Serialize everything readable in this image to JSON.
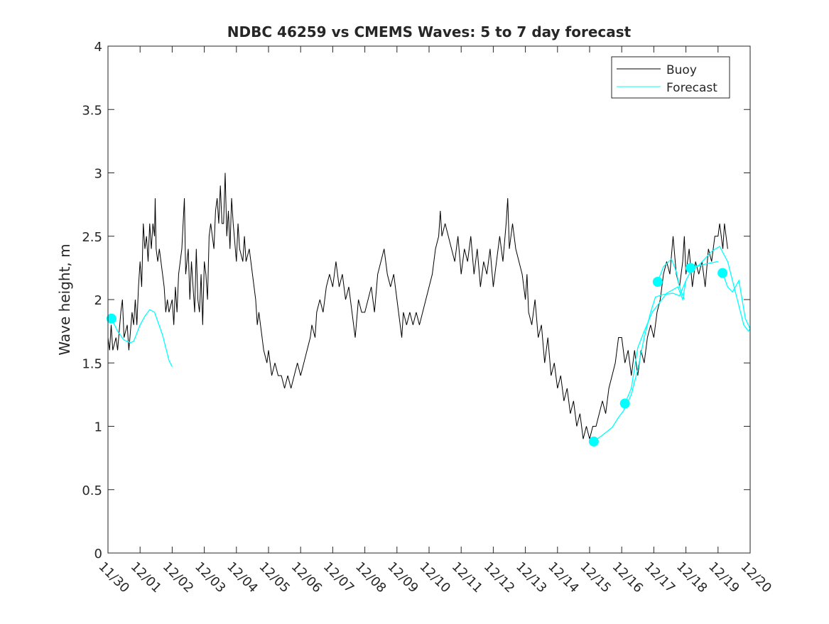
{
  "chart_data": {
    "type": "line",
    "title": "NDBC 46259 vs CMEMS Waves: 5 to 7 day forecast",
    "xlabel": "",
    "ylabel": "Wave height, m",
    "xlim": [
      0,
      20
    ],
    "ylim": [
      0,
      4
    ],
    "x_units": "days since 11/30",
    "xticks": [
      0,
      1,
      2,
      3,
      4,
      5,
      6,
      7,
      8,
      9,
      10,
      11,
      12,
      13,
      14,
      15,
      16,
      17,
      18,
      19,
      20
    ],
    "xtick_labels": [
      "11/30",
      "12/01",
      "12/02",
      "12/03",
      "12/04",
      "12/05",
      "12/06",
      "12/07",
      "12/08",
      "12/09",
      "12/10",
      "12/11",
      "12/12",
      "12/13",
      "12/14",
      "12/15",
      "12/16",
      "12/17",
      "12/18",
      "12/19",
      "12/20"
    ],
    "yticks": [
      0,
      0.5,
      1,
      1.5,
      2,
      2.5,
      3,
      3.5,
      4
    ],
    "ytick_labels": [
      "0",
      "0.5",
      "1",
      "1.5",
      "2",
      "2.5",
      "3",
      "3.5",
      "4"
    ],
    "grid": false,
    "legend": {
      "placement": "top-right",
      "entries": [
        "Buoy",
        "Forecast"
      ]
    },
    "colors": {
      "buoy": "#000000",
      "forecast": "#00FFFF"
    },
    "series": [
      {
        "name": "Buoy",
        "points": [
          [
            0,
            1.7
          ],
          [
            0.05,
            1.6
          ],
          [
            0.1,
            1.8
          ],
          [
            0.15,
            1.6
          ],
          [
            0.25,
            1.7
          ],
          [
            0.3,
            1.6
          ],
          [
            0.4,
            1.9
          ],
          [
            0.45,
            2.0
          ],
          [
            0.5,
            1.7
          ],
          [
            0.6,
            1.8
          ],
          [
            0.65,
            1.6
          ],
          [
            0.75,
            1.9
          ],
          [
            0.8,
            1.8
          ],
          [
            0.85,
            2.0
          ],
          [
            0.9,
            1.8
          ],
          [
            0.95,
            2.1
          ],
          [
            1.0,
            2.3
          ],
          [
            1.05,
            2.1
          ],
          [
            1.1,
            2.6
          ],
          [
            1.15,
            2.4
          ],
          [
            1.2,
            2.5
          ],
          [
            1.25,
            2.3
          ],
          [
            1.3,
            2.6
          ],
          [
            1.35,
            2.4
          ],
          [
            1.4,
            2.6
          ],
          [
            1.45,
            2.5
          ],
          [
            1.47,
            2.8
          ],
          [
            1.5,
            2.4
          ],
          [
            1.55,
            2.3
          ],
          [
            1.6,
            2.4
          ],
          [
            1.7,
            2.2
          ],
          [
            1.75,
            2.1
          ],
          [
            1.8,
            1.9
          ],
          [
            1.85,
            2.0
          ],
          [
            1.9,
            1.9
          ],
          [
            2.0,
            2.0
          ],
          [
            2.05,
            1.8
          ],
          [
            2.1,
            2.1
          ],
          [
            2.15,
            1.9
          ],
          [
            2.2,
            2.2
          ],
          [
            2.3,
            2.4
          ],
          [
            2.38,
            2.8
          ],
          [
            2.42,
            2.2
          ],
          [
            2.5,
            2.4
          ],
          [
            2.55,
            2.0
          ],
          [
            2.6,
            2.3
          ],
          [
            2.7,
            1.9
          ],
          [
            2.75,
            2.4
          ],
          [
            2.8,
            2.0
          ],
          [
            2.85,
            1.9
          ],
          [
            2.9,
            2.2
          ],
          [
            2.95,
            1.8
          ],
          [
            3.0,
            2.3
          ],
          [
            3.05,
            2.2
          ],
          [
            3.1,
            2.0
          ],
          [
            3.15,
            2.5
          ],
          [
            3.2,
            2.6
          ],
          [
            3.3,
            2.4
          ],
          [
            3.35,
            2.7
          ],
          [
            3.4,
            2.8
          ],
          [
            3.45,
            2.6
          ],
          [
            3.5,
            2.9
          ],
          [
            3.55,
            2.6
          ],
          [
            3.6,
            2.6
          ],
          [
            3.65,
            3.0
          ],
          [
            3.7,
            2.5
          ],
          [
            3.75,
            2.7
          ],
          [
            3.8,
            2.4
          ],
          [
            3.85,
            2.8
          ],
          [
            3.9,
            2.6
          ],
          [
            4.0,
            2.3
          ],
          [
            4.05,
            2.6
          ],
          [
            4.1,
            2.4
          ],
          [
            4.2,
            2.3
          ],
          [
            4.25,
            2.5
          ],
          [
            4.3,
            2.3
          ],
          [
            4.4,
            2.4
          ],
          [
            4.5,
            2.2
          ],
          [
            4.6,
            2.0
          ],
          [
            4.65,
            1.8
          ],
          [
            4.7,
            1.9
          ],
          [
            4.8,
            1.7
          ],
          [
            4.85,
            1.6
          ],
          [
            4.95,
            1.5
          ],
          [
            5.0,
            1.6
          ],
          [
            5.1,
            1.4
          ],
          [
            5.2,
            1.5
          ],
          [
            5.3,
            1.4
          ],
          [
            5.4,
            1.4
          ],
          [
            5.5,
            1.3
          ],
          [
            5.6,
            1.4
          ],
          [
            5.7,
            1.3
          ],
          [
            5.8,
            1.4
          ],
          [
            5.9,
            1.5
          ],
          [
            6.0,
            1.4
          ],
          [
            6.1,
            1.5
          ],
          [
            6.2,
            1.6
          ],
          [
            6.3,
            1.7
          ],
          [
            6.35,
            1.8
          ],
          [
            6.45,
            1.7
          ],
          [
            6.5,
            1.9
          ],
          [
            6.6,
            2.0
          ],
          [
            6.7,
            1.9
          ],
          [
            6.8,
            2.1
          ],
          [
            6.9,
            2.2
          ],
          [
            7.0,
            2.1
          ],
          [
            7.1,
            2.3
          ],
          [
            7.2,
            2.1
          ],
          [
            7.3,
            2.2
          ],
          [
            7.4,
            2.0
          ],
          [
            7.5,
            2.1
          ],
          [
            7.6,
            1.9
          ],
          [
            7.7,
            1.7
          ],
          [
            7.8,
            2.0
          ],
          [
            7.9,
            1.9
          ],
          [
            8.0,
            1.9
          ],
          [
            8.1,
            2.0
          ],
          [
            8.2,
            2.1
          ],
          [
            8.3,
            1.9
          ],
          [
            8.4,
            2.2
          ],
          [
            8.5,
            2.3
          ],
          [
            8.6,
            2.4
          ],
          [
            8.7,
            2.2
          ],
          [
            8.8,
            2.1
          ],
          [
            8.9,
            2.2
          ],
          [
            9.0,
            2.0
          ],
          [
            9.1,
            1.8
          ],
          [
            9.15,
            1.7
          ],
          [
            9.2,
            1.9
          ],
          [
            9.3,
            1.8
          ],
          [
            9.4,
            1.9
          ],
          [
            9.5,
            1.8
          ],
          [
            9.6,
            1.9
          ],
          [
            9.7,
            1.8
          ],
          [
            9.8,
            1.9
          ],
          [
            9.9,
            2.0
          ],
          [
            10.0,
            2.1
          ],
          [
            10.1,
            2.2
          ],
          [
            10.2,
            2.4
          ],
          [
            10.3,
            2.5
          ],
          [
            10.35,
            2.7
          ],
          [
            10.4,
            2.5
          ],
          [
            10.5,
            2.6
          ],
          [
            10.6,
            2.5
          ],
          [
            10.7,
            2.4
          ],
          [
            10.8,
            2.3
          ],
          [
            10.9,
            2.5
          ],
          [
            11.0,
            2.2
          ],
          [
            11.1,
            2.4
          ],
          [
            11.2,
            2.3
          ],
          [
            11.3,
            2.5
          ],
          [
            11.4,
            2.2
          ],
          [
            11.5,
            2.4
          ],
          [
            11.6,
            2.1
          ],
          [
            11.7,
            2.3
          ],
          [
            11.8,
            2.2
          ],
          [
            11.9,
            2.4
          ],
          [
            12.0,
            2.1
          ],
          [
            12.1,
            2.3
          ],
          [
            12.2,
            2.5
          ],
          [
            12.3,
            2.3
          ],
          [
            12.4,
            2.6
          ],
          [
            12.45,
            2.8
          ],
          [
            12.5,
            2.4
          ],
          [
            12.6,
            2.6
          ],
          [
            12.7,
            2.4
          ],
          [
            12.8,
            2.3
          ],
          [
            12.9,
            2.2
          ],
          [
            13.0,
            2.0
          ],
          [
            13.05,
            2.2
          ],
          [
            13.1,
            1.9
          ],
          [
            13.2,
            1.8
          ],
          [
            13.3,
            2.0
          ],
          [
            13.4,
            1.7
          ],
          [
            13.5,
            1.8
          ],
          [
            13.6,
            1.5
          ],
          [
            13.7,
            1.7
          ],
          [
            13.8,
            1.4
          ],
          [
            13.9,
            1.5
          ],
          [
            14.0,
            1.3
          ],
          [
            14.1,
            1.4
          ],
          [
            14.2,
            1.2
          ],
          [
            14.3,
            1.3
          ],
          [
            14.4,
            1.1
          ],
          [
            14.5,
            1.2
          ],
          [
            14.6,
            1.0
          ],
          [
            14.7,
            1.1
          ],
          [
            14.8,
            0.9
          ],
          [
            14.9,
            1.0
          ],
          [
            15.0,
            0.9
          ],
          [
            15.1,
            1.0
          ],
          [
            15.2,
            1.0
          ],
          [
            15.3,
            1.1
          ],
          [
            15.4,
            1.2
          ],
          [
            15.5,
            1.1
          ],
          [
            15.6,
            1.3
          ],
          [
            15.7,
            1.4
          ],
          [
            15.8,
            1.5
          ],
          [
            15.9,
            1.7
          ],
          [
            16.0,
            1.7
          ],
          [
            16.1,
            1.5
          ],
          [
            16.2,
            1.6
          ],
          [
            16.3,
            1.4
          ],
          [
            16.4,
            1.6
          ],
          [
            16.5,
            1.4
          ],
          [
            16.6,
            1.6
          ],
          [
            16.7,
            1.5
          ],
          [
            16.8,
            1.7
          ],
          [
            16.9,
            1.8
          ],
          [
            17.0,
            1.7
          ],
          [
            17.1,
            1.9
          ],
          [
            17.2,
            2.0
          ],
          [
            17.3,
            2.2
          ],
          [
            17.4,
            2.3
          ],
          [
            17.5,
            2.2
          ],
          [
            17.6,
            2.5
          ],
          [
            17.7,
            2.2
          ],
          [
            17.8,
            2.1
          ],
          [
            17.9,
            2.3
          ],
          [
            17.95,
            2.5
          ],
          [
            18.0,
            2.2
          ],
          [
            18.1,
            2.4
          ],
          [
            18.2,
            2.1
          ],
          [
            18.3,
            2.3
          ],
          [
            18.4,
            2.2
          ],
          [
            18.5,
            2.3
          ],
          [
            18.6,
            2.1
          ],
          [
            18.7,
            2.4
          ],
          [
            18.8,
            2.3
          ],
          [
            18.9,
            2.5
          ],
          [
            19.0,
            2.5
          ],
          [
            19.05,
            2.6
          ],
          [
            19.1,
            2.5
          ],
          [
            19.15,
            2.4
          ],
          [
            19.2,
            2.6
          ],
          [
            19.3,
            2.4
          ]
        ]
      },
      {
        "name": "Forecast",
        "segments": [
          [
            [
              0.11,
              1.85
            ],
            [
              0.3,
              1.75
            ],
            [
              0.5,
              1.68
            ],
            [
              0.7,
              1.66
            ],
            [
              0.8,
              1.67
            ],
            [
              1.0,
              1.8
            ],
            [
              1.15,
              1.87
            ],
            [
              1.3,
              1.92
            ],
            [
              1.45,
              1.9
            ],
            [
              1.7,
              1.72
            ],
            [
              1.9,
              1.52
            ],
            [
              2.0,
              1.47
            ]
          ],
          [
            [
              15.13,
              0.88
            ],
            [
              15.4,
              0.93
            ],
            [
              15.7,
              0.99
            ],
            [
              15.9,
              1.07
            ],
            [
              16.05,
              1.12
            ],
            [
              16.3,
              1.25
            ],
            [
              16.5,
              1.45
            ],
            [
              16.7,
              1.7
            ],
            [
              16.9,
              1.9
            ],
            [
              17.05,
              2.02
            ],
            [
              17.3,
              2.04
            ],
            [
              17.6,
              2.05
            ],
            [
              17.8,
              2.03
            ],
            [
              17.95,
              2.12
            ],
            [
              18.0,
              2.15
            ]
          ],
          [
            [
              16.1,
              1.18
            ],
            [
              16.3,
              1.3
            ],
            [
              16.5,
              1.62
            ],
            [
              16.7,
              1.75
            ],
            [
              16.95,
              1.9
            ],
            [
              17.4,
              2.05
            ],
            [
              17.75,
              2.1
            ],
            [
              17.9,
              2.0
            ],
            [
              18.0,
              2.15
            ],
            [
              18.2,
              2.25
            ],
            [
              18.6,
              2.28
            ],
            [
              19.0,
              2.3
            ]
          ],
          [
            [
              17.12,
              2.14
            ],
            [
              17.3,
              2.26
            ],
            [
              17.55,
              2.32
            ],
            [
              17.7,
              2.22
            ],
            [
              17.8,
              2.1
            ],
            [
              17.95,
              2.0
            ]
          ],
          [
            [
              18.14,
              2.25
            ],
            [
              18.4,
              2.27
            ],
            [
              18.8,
              2.38
            ],
            [
              19.05,
              2.42
            ],
            [
              19.3,
              2.3
            ],
            [
              19.55,
              2.05
            ],
            [
              19.8,
              1.8
            ],
            [
              19.95,
              1.75
            ],
            [
              20.0,
              1.77
            ]
          ],
          [
            [
              19.14,
              2.21
            ],
            [
              19.3,
              2.1
            ],
            [
              19.45,
              2.06
            ],
            [
              19.65,
              2.15
            ],
            [
              19.85,
              1.85
            ],
            [
              20.0,
              1.77
            ]
          ]
        ]
      }
    ]
  }
}
